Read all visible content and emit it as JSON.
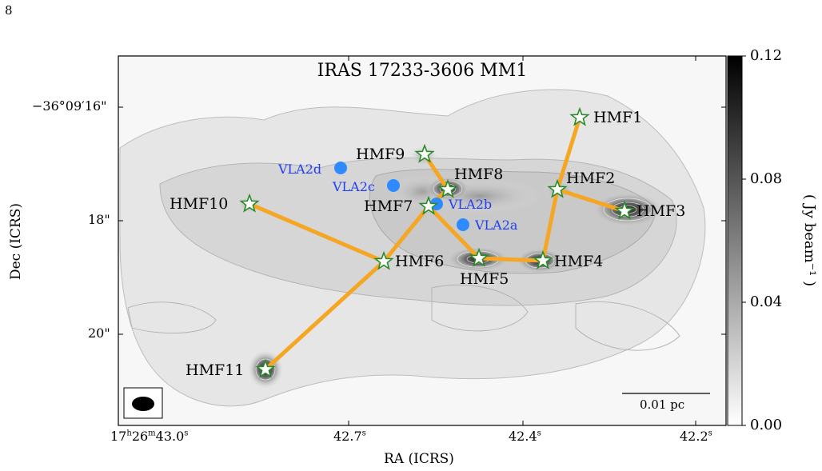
{
  "page_number": "8",
  "figure": {
    "title": "IRAS 17233-3606 MM1",
    "xlabel": "RA (ICRS)",
    "ylabel": "Dec (ICRS)",
    "x_ticks": [
      {
        "main": "17",
        "sup1": "h",
        "mid": "26",
        "sup2": "m",
        "sec": "43.0",
        "sup3": "s"
      },
      {
        "main": "42.7",
        "sup": "s"
      },
      {
        "main": "42.4",
        "sup": "s"
      },
      {
        "main": "42.2",
        "sup": "s"
      }
    ],
    "y_ticks": [
      "−36°09′16\"",
      "18\"",
      "20\""
    ],
    "colorbar": {
      "label": "( Jy beam⁻¹ )",
      "ticks": [
        "0.12",
        "0.08",
        "0.04",
        "0.00"
      ],
      "range": [
        0.0,
        0.12
      ]
    },
    "scale_bar": "0.01 pc",
    "hmf_sources": [
      "HMF1",
      "HMF2",
      "HMF3",
      "HMF4",
      "HMF5",
      "HMF6",
      "HMF7",
      "HMF8",
      "HMF9",
      "HMF10",
      "HMF11"
    ],
    "vla_sources": [
      "VLA2a",
      "VLA2b",
      "VLA2c",
      "VLA2d"
    ],
    "colors": {
      "filament": "#f5a623",
      "star_fill": "#ffffff",
      "star_edge": "#2a8a2a",
      "vla_marker": "#2e8bff",
      "vla_text": "#1f3ff0"
    }
  }
}
